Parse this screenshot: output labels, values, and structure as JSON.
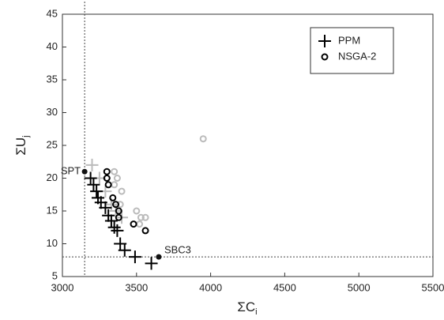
{
  "chart_data": {
    "type": "scatter",
    "xlabel": {
      "text": "ΣC",
      "sub": "i"
    },
    "ylabel": {
      "text": "ΣU",
      "sub": "j"
    },
    "xlim": [
      3000,
      5500
    ],
    "xticks": [
      3000,
      3500,
      4000,
      4500,
      5000,
      5500
    ],
    "ylim": [
      5,
      45
    ],
    "yticks": [
      5,
      10,
      15,
      20,
      25,
      30,
      35,
      40,
      45
    ],
    "legend": "upper right",
    "series": [
      {
        "marker": "plus",
        "color": "#bbbbbb",
        "x": [
          3200,
          3250,
          3290,
          3330,
          3360,
          3400
        ],
        "y": [
          22,
          20,
          18,
          16,
          15,
          14
        ]
      },
      {
        "marker": "circle",
        "color": "#bbbbbb",
        "x": [
          3350,
          3370,
          3350,
          3400,
          3390,
          3500,
          3530,
          3560,
          3520,
          3950
        ],
        "y": [
          21,
          20,
          19,
          18,
          16,
          15,
          14,
          14,
          13,
          26
        ]
      },
      {
        "name": "PPM",
        "marker": "plus",
        "color": "#000000",
        "x": [
          3190,
          3210,
          3230,
          3240,
          3260,
          3290,
          3310,
          3330,
          3350,
          3370,
          3390,
          3420,
          3490,
          3600
        ],
        "y": [
          20,
          19,
          18,
          17,
          16.3,
          15.5,
          14.3,
          13.5,
          12.5,
          12,
          10,
          9,
          8,
          7
        ]
      },
      {
        "name": "NSGA-2",
        "marker": "circle",
        "color": "#000000",
        "x": [
          3300,
          3300,
          3310,
          3340,
          3360,
          3380,
          3380,
          3480,
          3560
        ],
        "y": [
          21,
          20,
          19,
          17,
          16,
          15,
          14,
          13,
          12
        ]
      }
    ],
    "points": [
      {
        "label": "SPT",
        "x": 3150,
        "y": 21
      },
      {
        "label": "SBC3",
        "x": 3650,
        "y": 8
      }
    ],
    "vline": 3150,
    "hline": 8
  }
}
